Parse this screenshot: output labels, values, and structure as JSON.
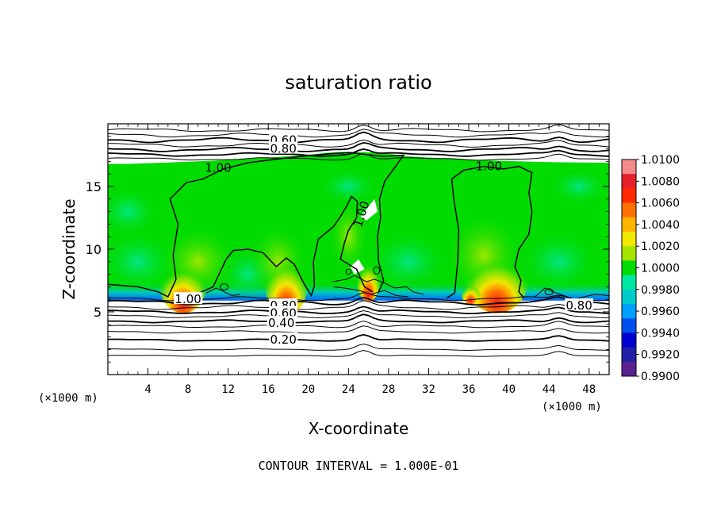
{
  "chart_data": {
    "type": "heatmap",
    "title": "saturation ratio",
    "xlabel": "X-coordinate",
    "ylabel": "Z-coordinate",
    "x_unit_left": "(×1000 m)",
    "x_unit_right": "(×1000 m)",
    "xlim": [
      0,
      50
    ],
    "ylim": [
      0,
      20
    ],
    "xticks": [
      4,
      8,
      12,
      16,
      20,
      24,
      28,
      32,
      36,
      40,
      44,
      48
    ],
    "yticks": [
      5,
      10,
      15
    ],
    "footer": "CONTOUR INTERVAL = 1.000E-01",
    "colorbar": {
      "min": 0.99,
      "max": 1.01,
      "labels": [
        "1.0100",
        "1.0080",
        "1.0060",
        "1.0040",
        "1.0020",
        "1.0000",
        "0.9980",
        "0.9960",
        "0.9940",
        "0.9920",
        "0.9900"
      ],
      "colors": [
        "#f48a8a",
        "#e8202a",
        "#ff2a00",
        "#ff7000",
        "#ffb400",
        "#f2e800",
        "#a6e400",
        "#00dc00",
        "#00e8a0",
        "#00cccc",
        "#00a0ff",
        "#0050f0",
        "#0000d0",
        "#2020a8",
        "#5a2090"
      ]
    },
    "contour_levels": [
      0.2,
      0.4,
      0.6,
      0.8,
      1.0
    ],
    "contour_labels": [
      {
        "text": "0.60",
        "x": 17.5,
        "y": 18.7
      },
      {
        "text": "0.80",
        "x": 17.5,
        "y": 18.0
      },
      {
        "text": "1.00",
        "x": 11.0,
        "y": 16.5
      },
      {
        "text": "1.00",
        "x": 38.0,
        "y": 16.6
      },
      {
        "text": "1.00",
        "x": 25.3,
        "y": 12.8
      },
      {
        "text": "1.00",
        "x": 8.0,
        "y": 6.0
      },
      {
        "text": "0.80",
        "x": 17.5,
        "y": 5.5
      },
      {
        "text": "0.60",
        "x": 17.5,
        "y": 4.9
      },
      {
        "text": "0.40",
        "x": 17.3,
        "y": 4.1
      },
      {
        "text": "0.20",
        "x": 17.5,
        "y": 2.8
      },
      {
        "text": "0.80",
        "x": 47.0,
        "y": 5.5
      }
    ]
  }
}
